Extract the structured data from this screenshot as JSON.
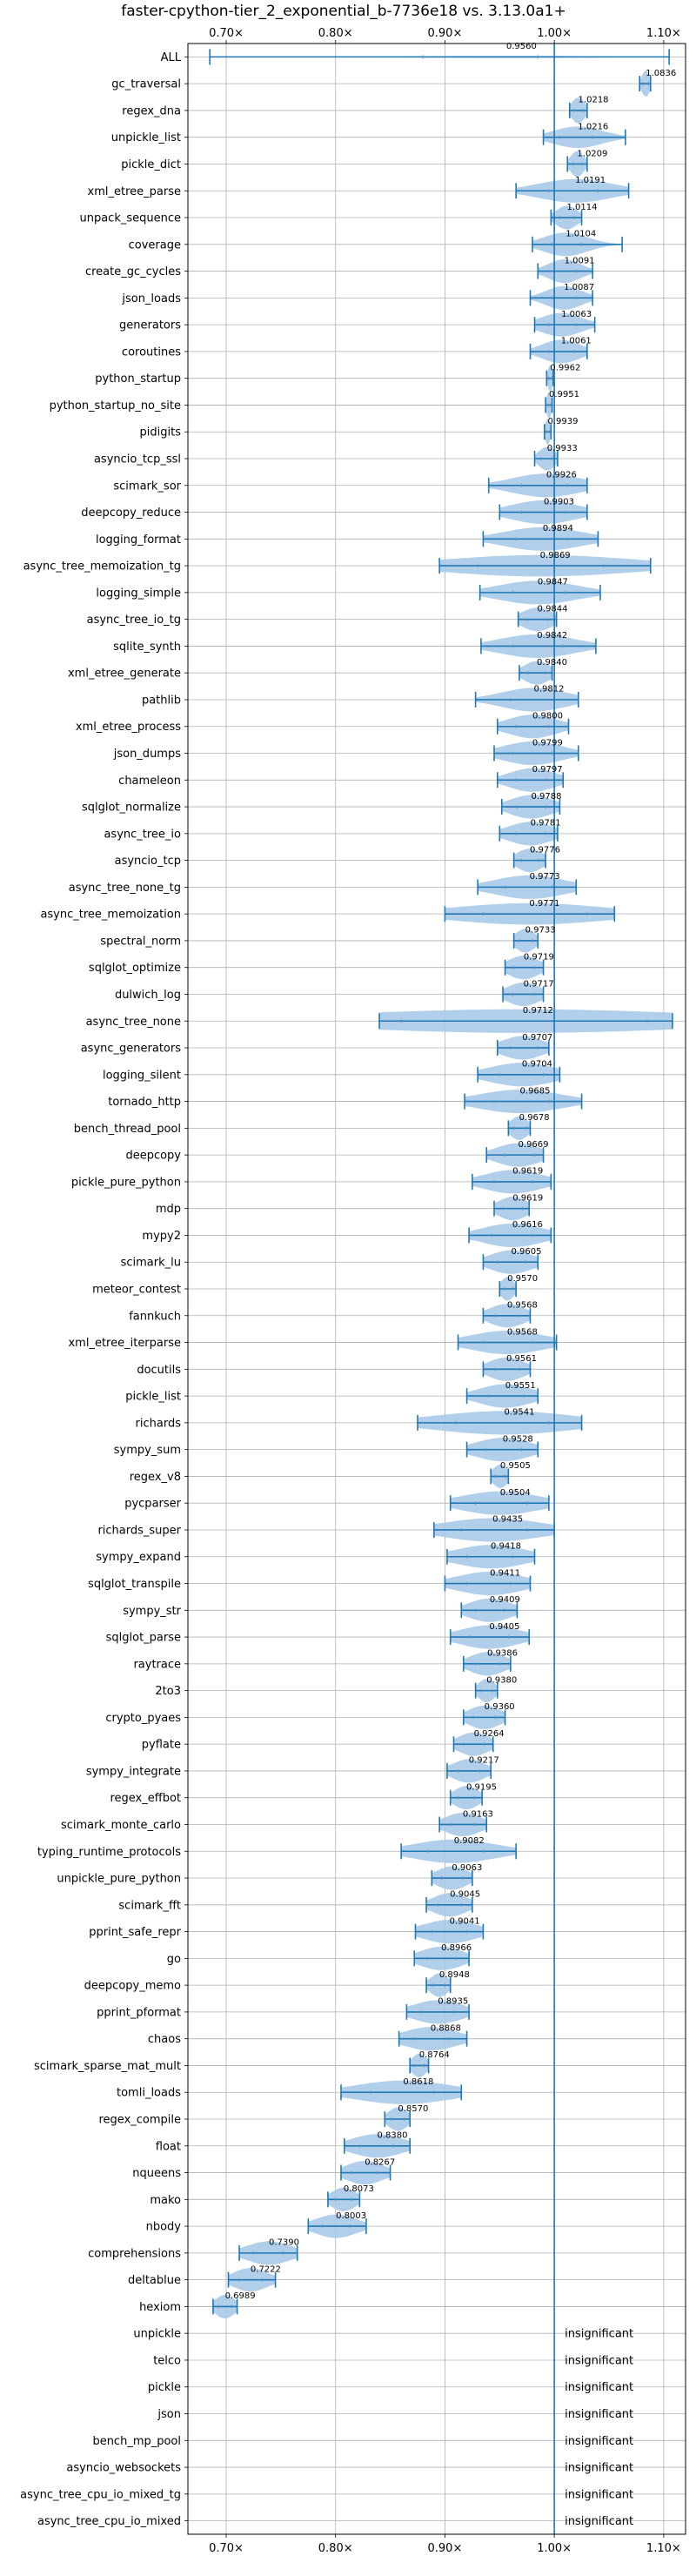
{
  "chart_data": {
    "type": "violin",
    "title": "faster-cpython-tier_2_exponential_b-7736e18 vs. 3.13.0a1+",
    "xlabel": "",
    "ylabel": "",
    "xlim": [
      0.665,
      1.12
    ],
    "x_ticks": [
      0.7,
      0.8,
      0.9,
      1.0,
      1.1
    ],
    "x_tick_labels": [
      "0.70×",
      "0.80×",
      "0.90×",
      "1.00×",
      "1.10×"
    ],
    "reference_line": 1.0,
    "grid": true,
    "colors": {
      "violin": "#a9c9e8",
      "line": "#1f77b4",
      "grid": "#b0b0b0"
    },
    "insignificant_text": "insignificant",
    "benchmarks": [
      {
        "name": "ALL",
        "value": 0.956,
        "label": "0.9560",
        "min": 0.685,
        "max": 1.105,
        "q1": 0.88,
        "q3": 0.985,
        "extent": 0.05
      },
      {
        "name": "gc_traversal",
        "value": 1.0836,
        "label": "1.0836",
        "min": 1.078,
        "max": 1.088,
        "q1": 1.081,
        "q3": 1.086,
        "extent": 0.6
      },
      {
        "name": "regex_dna",
        "value": 1.0218,
        "label": "1.0218",
        "min": 1.014,
        "max": 1.03,
        "q1": 1.018,
        "q3": 1.026,
        "extent": 0.6
      },
      {
        "name": "unpickle_list",
        "value": 1.0216,
        "label": "1.0216",
        "min": 0.99,
        "max": 1.065,
        "q1": 1.005,
        "q3": 1.035,
        "extent": 0.5
      },
      {
        "name": "pickle_dict",
        "value": 1.0209,
        "label": "1.0209",
        "min": 1.012,
        "max": 1.03,
        "q1": 1.017,
        "q3": 1.025,
        "extent": 0.6
      },
      {
        "name": "xml_etree_parse",
        "value": 1.0191,
        "label": "1.0191",
        "min": 0.965,
        "max": 1.068,
        "q1": 0.995,
        "q3": 1.04,
        "extent": 0.55
      },
      {
        "name": "unpack_sequence",
        "value": 1.0114,
        "label": "1.0114",
        "min": 0.997,
        "max": 1.025,
        "q1": 1.005,
        "q3": 1.018,
        "extent": 0.55
      },
      {
        "name": "coverage",
        "value": 1.0104,
        "label": "1.0104",
        "min": 0.98,
        "max": 1.062,
        "q1": 0.998,
        "q3": 1.025,
        "extent": 0.55
      },
      {
        "name": "create_gc_cycles",
        "value": 1.0091,
        "label": "1.0091",
        "min": 0.985,
        "max": 1.035,
        "q1": 1.0,
        "q3": 1.02,
        "extent": 0.55
      },
      {
        "name": "json_loads",
        "value": 1.0087,
        "label": "1.0087",
        "min": 0.978,
        "max": 1.035,
        "q1": 0.998,
        "q3": 1.02,
        "extent": 0.55
      },
      {
        "name": "generators",
        "value": 1.0063,
        "label": "1.0063",
        "min": 0.982,
        "max": 1.037,
        "q1": 0.995,
        "q3": 1.02,
        "extent": 0.55
      },
      {
        "name": "coroutines",
        "value": 1.0061,
        "label": "1.0061",
        "min": 0.978,
        "max": 1.03,
        "q1": 0.995,
        "q3": 1.018,
        "extent": 0.55
      },
      {
        "name": "python_startup",
        "value": 0.9962,
        "label": "0.9962",
        "min": 0.993,
        "max": 0.999,
        "q1": 0.995,
        "q3": 0.998,
        "extent": 0.6
      },
      {
        "name": "python_startup_no_site",
        "value": 0.9951,
        "label": "0.9951",
        "min": 0.992,
        "max": 0.998,
        "q1": 0.994,
        "q3": 0.997,
        "extent": 0.6
      },
      {
        "name": "pidigits",
        "value": 0.9939,
        "label": "0.9939",
        "min": 0.991,
        "max": 0.997,
        "q1": 0.993,
        "q3": 0.996,
        "extent": 0.6
      },
      {
        "name": "asyncio_tcp_ssl",
        "value": 0.9933,
        "label": "0.9933",
        "min": 0.982,
        "max": 1.003,
        "q1": 0.988,
        "q3": 0.998,
        "extent": 0.55
      },
      {
        "name": "scimark_sor",
        "value": 0.9926,
        "label": "0.9926",
        "min": 0.94,
        "max": 1.03,
        "q1": 0.97,
        "q3": 1.012,
        "extent": 0.55
      },
      {
        "name": "deepcopy_reduce",
        "value": 0.9903,
        "label": "0.9903",
        "min": 0.95,
        "max": 1.03,
        "q1": 0.97,
        "q3": 1.01,
        "extent": 0.55
      },
      {
        "name": "logging_format",
        "value": 0.9894,
        "label": "0.9894",
        "min": 0.935,
        "max": 1.04,
        "q1": 0.965,
        "q3": 1.012,
        "extent": 0.55
      },
      {
        "name": "async_tree_memoization_tg",
        "value": 0.9869,
        "label": "0.9869",
        "min": 0.895,
        "max": 1.088,
        "q1": 0.93,
        "q3": 1.045,
        "extent": 0.5
      },
      {
        "name": "logging_simple",
        "value": 0.9847,
        "label": "0.9847",
        "min": 0.932,
        "max": 1.042,
        "q1": 0.962,
        "q3": 1.01,
        "extent": 0.55
      },
      {
        "name": "async_tree_io_tg",
        "value": 0.9844,
        "label": "0.9844",
        "min": 0.967,
        "max": 1.002,
        "q1": 0.975,
        "q3": 0.994,
        "extent": 0.55
      },
      {
        "name": "sqlite_synth",
        "value": 0.9842,
        "label": "0.9842",
        "min": 0.933,
        "max": 1.038,
        "q1": 0.962,
        "q3": 1.008,
        "extent": 0.55
      },
      {
        "name": "xml_etree_generate",
        "value": 0.984,
        "label": "0.9840",
        "min": 0.968,
        "max": 0.998,
        "q1": 0.976,
        "q3": 0.992,
        "extent": 0.55
      },
      {
        "name": "pathlib",
        "value": 0.9812,
        "label": "0.9812",
        "min": 0.928,
        "max": 1.022,
        "q1": 0.96,
        "q3": 1.0,
        "extent": 0.55
      },
      {
        "name": "xml_etree_process",
        "value": 0.98,
        "label": "0.9800",
        "min": 0.948,
        "max": 1.013,
        "q1": 0.965,
        "q3": 0.995,
        "extent": 0.55
      },
      {
        "name": "json_dumps",
        "value": 0.9799,
        "label": "0.9799",
        "min": 0.945,
        "max": 1.022,
        "q1": 0.962,
        "q3": 0.998,
        "extent": 0.55
      },
      {
        "name": "chameleon",
        "value": 0.9797,
        "label": "0.9797",
        "min": 0.948,
        "max": 1.008,
        "q1": 0.965,
        "q3": 0.993,
        "extent": 0.55
      },
      {
        "name": "sqlglot_normalize",
        "value": 0.9788,
        "label": "0.9788",
        "min": 0.952,
        "max": 1.005,
        "q1": 0.966,
        "q3": 0.992,
        "extent": 0.55
      },
      {
        "name": "async_tree_io",
        "value": 0.9781,
        "label": "0.9781",
        "min": 0.95,
        "max": 1.003,
        "q1": 0.965,
        "q3": 0.992,
        "extent": 0.55
      },
      {
        "name": "asyncio_tcp",
        "value": 0.9776,
        "label": "0.9776",
        "min": 0.963,
        "max": 0.992,
        "q1": 0.97,
        "q3": 0.986,
        "extent": 0.55
      },
      {
        "name": "async_tree_none_tg",
        "value": 0.9773,
        "label": "0.9773",
        "min": 0.93,
        "max": 1.02,
        "q1": 0.955,
        "q3": 0.998,
        "extent": 0.55
      },
      {
        "name": "async_tree_memoization",
        "value": 0.9771,
        "label": "0.9771",
        "min": 0.9,
        "max": 1.055,
        "q1": 0.935,
        "q3": 1.03,
        "extent": 0.5
      },
      {
        "name": "spectral_norm",
        "value": 0.9733,
        "label": "0.9733",
        "min": 0.963,
        "max": 0.985,
        "q1": 0.968,
        "q3": 0.98,
        "extent": 0.55
      },
      {
        "name": "sqlglot_optimize",
        "value": 0.9719,
        "label": "0.9719",
        "min": 0.955,
        "max": 0.99,
        "q1": 0.963,
        "q3": 0.982,
        "extent": 0.55
      },
      {
        "name": "dulwich_log",
        "value": 0.9717,
        "label": "0.9717",
        "min": 0.953,
        "max": 0.99,
        "q1": 0.962,
        "q3": 0.982,
        "extent": 0.55
      },
      {
        "name": "async_tree_none",
        "value": 0.9712,
        "label": "0.9712",
        "min": 0.84,
        "max": 1.108,
        "q1": 0.86,
        "q3": 1.085,
        "extent": 0.55
      },
      {
        "name": "async_generators",
        "value": 0.9707,
        "label": "0.9707",
        "min": 0.948,
        "max": 0.995,
        "q1": 0.96,
        "q3": 0.985,
        "extent": 0.55
      },
      {
        "name": "logging_silent",
        "value": 0.9704,
        "label": "0.9704",
        "min": 0.93,
        "max": 1.005,
        "q1": 0.95,
        "q3": 0.99,
        "extent": 0.55
      },
      {
        "name": "tornado_http",
        "value": 0.9685,
        "label": "0.9685",
        "min": 0.918,
        "max": 1.025,
        "q1": 0.945,
        "q3": 0.995,
        "extent": 0.55
      },
      {
        "name": "bench_thread_pool",
        "value": 0.9678,
        "label": "0.9678",
        "min": 0.958,
        "max": 0.978,
        "q1": 0.963,
        "q3": 0.974,
        "extent": 0.55
      },
      {
        "name": "deepcopy",
        "value": 0.9669,
        "label": "0.9669",
        "min": 0.938,
        "max": 0.99,
        "q1": 0.955,
        "q3": 0.982,
        "extent": 0.55
      },
      {
        "name": "pickle_pure_python",
        "value": 0.9619,
        "label": "0.9619",
        "min": 0.925,
        "max": 0.997,
        "q1": 0.945,
        "q3": 0.98,
        "extent": 0.55
      },
      {
        "name": "mdp",
        "value": 0.9619,
        "label": "0.9619",
        "min": 0.945,
        "max": 0.977,
        "q1": 0.953,
        "q3": 0.971,
        "extent": 0.55
      },
      {
        "name": "mypy2",
        "value": 0.9616,
        "label": "0.9616",
        "min": 0.922,
        "max": 0.997,
        "q1": 0.943,
        "q3": 0.98,
        "extent": 0.55
      },
      {
        "name": "scimark_lu",
        "value": 0.9605,
        "label": "0.9605",
        "min": 0.935,
        "max": 0.985,
        "q1": 0.948,
        "q3": 0.974,
        "extent": 0.55
      },
      {
        "name": "meteor_contest",
        "value": 0.957,
        "label": "0.9570",
        "min": 0.95,
        "max": 0.965,
        "q1": 0.954,
        "q3": 0.962,
        "extent": 0.55
      },
      {
        "name": "fannkuch",
        "value": 0.9568,
        "label": "0.9568",
        "min": 0.935,
        "max": 0.978,
        "q1": 0.946,
        "q3": 0.968,
        "extent": 0.55
      },
      {
        "name": "xml_etree_iterparse",
        "value": 0.9568,
        "label": "0.9568",
        "min": 0.912,
        "max": 1.002,
        "q1": 0.935,
        "q3": 0.98,
        "extent": 0.55
      },
      {
        "name": "docutils",
        "value": 0.9561,
        "label": "0.9561",
        "min": 0.935,
        "max": 0.978,
        "q1": 0.946,
        "q3": 0.968,
        "extent": 0.55
      },
      {
        "name": "pickle_list",
        "value": 0.9551,
        "label": "0.9551",
        "min": 0.92,
        "max": 0.985,
        "q1": 0.94,
        "q3": 0.972,
        "extent": 0.55
      },
      {
        "name": "richards",
        "value": 0.9541,
        "label": "0.9541",
        "min": 0.875,
        "max": 1.025,
        "q1": 0.91,
        "q3": 0.995,
        "extent": 0.55
      },
      {
        "name": "sympy_sum",
        "value": 0.9528,
        "label": "0.9528",
        "min": 0.92,
        "max": 0.985,
        "q1": 0.937,
        "q3": 0.97,
        "extent": 0.55
      },
      {
        "name": "regex_v8",
        "value": 0.9505,
        "label": "0.9505",
        "min": 0.942,
        "max": 0.958,
        "q1": 0.946,
        "q3": 0.955,
        "extent": 0.55
      },
      {
        "name": "pycparser",
        "value": 0.9504,
        "label": "0.9504",
        "min": 0.905,
        "max": 0.995,
        "q1": 0.928,
        "q3": 0.975,
        "extent": 0.55
      },
      {
        "name": "richards_super",
        "value": 0.9435,
        "label": "0.9435",
        "min": 0.89,
        "max": 1.0,
        "q1": 0.915,
        "q3": 0.975,
        "extent": 0.55
      },
      {
        "name": "sympy_expand",
        "value": 0.9418,
        "label": "0.9418",
        "min": 0.902,
        "max": 0.982,
        "q1": 0.92,
        "q3": 0.962,
        "extent": 0.55
      },
      {
        "name": "sqlglot_transpile",
        "value": 0.9411,
        "label": "0.9411",
        "min": 0.9,
        "max": 0.978,
        "q1": 0.92,
        "q3": 0.96,
        "extent": 0.55
      },
      {
        "name": "sympy_str",
        "value": 0.9409,
        "label": "0.9409",
        "min": 0.915,
        "max": 0.966,
        "q1": 0.928,
        "q3": 0.954,
        "extent": 0.55
      },
      {
        "name": "sqlglot_parse",
        "value": 0.9405,
        "label": "0.9405",
        "min": 0.905,
        "max": 0.977,
        "q1": 0.922,
        "q3": 0.958,
        "extent": 0.55
      },
      {
        "name": "raytrace",
        "value": 0.9386,
        "label": "0.9386",
        "min": 0.917,
        "max": 0.96,
        "q1": 0.928,
        "q3": 0.95,
        "extent": 0.55
      },
      {
        "name": "2to3",
        "value": 0.938,
        "label": "0.9380",
        "min": 0.928,
        "max": 0.948,
        "q1": 0.933,
        "q3": 0.943,
        "extent": 0.55
      },
      {
        "name": "crypto_pyaes",
        "value": 0.936,
        "label": "0.9360",
        "min": 0.917,
        "max": 0.955,
        "q1": 0.926,
        "q3": 0.946,
        "extent": 0.55
      },
      {
        "name": "pyflate",
        "value": 0.9264,
        "label": "0.9264",
        "min": 0.908,
        "max": 0.944,
        "q1": 0.917,
        "q3": 0.936,
        "extent": 0.55
      },
      {
        "name": "sympy_integrate",
        "value": 0.9217,
        "label": "0.9217",
        "min": 0.902,
        "max": 0.942,
        "q1": 0.912,
        "q3": 0.932,
        "extent": 0.55
      },
      {
        "name": "regex_effbot",
        "value": 0.9195,
        "label": "0.9195",
        "min": 0.905,
        "max": 0.934,
        "q1": 0.912,
        "q3": 0.927,
        "extent": 0.55
      },
      {
        "name": "scimark_monte_carlo",
        "value": 0.9163,
        "label": "0.9163",
        "min": 0.895,
        "max": 0.938,
        "q1": 0.905,
        "q3": 0.927,
        "extent": 0.55
      },
      {
        "name": "typing_runtime_protocols",
        "value": 0.9082,
        "label": "0.9082",
        "min": 0.86,
        "max": 0.965,
        "q1": 0.885,
        "q3": 0.935,
        "extent": 0.55
      },
      {
        "name": "unpickle_pure_python",
        "value": 0.9063,
        "label": "0.9063",
        "min": 0.888,
        "max": 0.925,
        "q1": 0.897,
        "q3": 0.916,
        "extent": 0.55
      },
      {
        "name": "scimark_fft",
        "value": 0.9045,
        "label": "0.9045",
        "min": 0.883,
        "max": 0.925,
        "q1": 0.894,
        "q3": 0.915,
        "extent": 0.55
      },
      {
        "name": "pprint_safe_repr",
        "value": 0.9041,
        "label": "0.9041",
        "min": 0.873,
        "max": 0.935,
        "q1": 0.888,
        "q3": 0.92,
        "extent": 0.55
      },
      {
        "name": "go",
        "value": 0.8966,
        "label": "0.8966",
        "min": 0.872,
        "max": 0.922,
        "q1": 0.884,
        "q3": 0.91,
        "extent": 0.55
      },
      {
        "name": "deepcopy_memo",
        "value": 0.8948,
        "label": "0.8948",
        "min": 0.883,
        "max": 0.905,
        "q1": 0.889,
        "q3": 0.9,
        "extent": 0.55
      },
      {
        "name": "pprint_pformat",
        "value": 0.8935,
        "label": "0.8935",
        "min": 0.865,
        "max": 0.922,
        "q1": 0.878,
        "q3": 0.908,
        "extent": 0.55
      },
      {
        "name": "chaos",
        "value": 0.8868,
        "label": "0.8868",
        "min": 0.858,
        "max": 0.92,
        "q1": 0.871,
        "q3": 0.903,
        "extent": 0.55
      },
      {
        "name": "scimark_sparse_mat_mult",
        "value": 0.8764,
        "label": "0.8764",
        "min": 0.868,
        "max": 0.885,
        "q1": 0.872,
        "q3": 0.881,
        "extent": 0.55
      },
      {
        "name": "tomli_loads",
        "value": 0.8618,
        "label": "0.8618",
        "min": 0.805,
        "max": 0.915,
        "q1": 0.832,
        "q3": 0.89,
        "extent": 0.55
      },
      {
        "name": "regex_compile",
        "value": 0.857,
        "label": "0.8570",
        "min": 0.845,
        "max": 0.868,
        "q1": 0.851,
        "q3": 0.863,
        "extent": 0.55
      },
      {
        "name": "float",
        "value": 0.838,
        "label": "0.8380",
        "min": 0.808,
        "max": 0.868,
        "q1": 0.822,
        "q3": 0.853,
        "extent": 0.55
      },
      {
        "name": "nqueens",
        "value": 0.8267,
        "label": "0.8267",
        "min": 0.805,
        "max": 0.85,
        "q1": 0.815,
        "q3": 0.838,
        "extent": 0.55
      },
      {
        "name": "mako",
        "value": 0.8073,
        "label": "0.8073",
        "min": 0.793,
        "max": 0.822,
        "q1": 0.8,
        "q3": 0.815,
        "extent": 0.55
      },
      {
        "name": "nbody",
        "value": 0.8003,
        "label": "0.8003",
        "min": 0.775,
        "max": 0.828,
        "q1": 0.788,
        "q3": 0.813,
        "extent": 0.55
      },
      {
        "name": "comprehensions",
        "value": 0.739,
        "label": "0.7390",
        "min": 0.712,
        "max": 0.765,
        "q1": 0.725,
        "q3": 0.752,
        "extent": 0.55
      },
      {
        "name": "deltablue",
        "value": 0.7222,
        "label": "0.7222",
        "min": 0.702,
        "max": 0.745,
        "q1": 0.712,
        "q3": 0.733,
        "extent": 0.55
      },
      {
        "name": "hexiom",
        "value": 0.6989,
        "label": "0.6989",
        "min": 0.688,
        "max": 0.71,
        "q1": 0.693,
        "q3": 0.705,
        "extent": 0.55
      },
      {
        "name": "unpickle",
        "insignificant": true
      },
      {
        "name": "telco",
        "insignificant": true
      },
      {
        "name": "pickle",
        "insignificant": true
      },
      {
        "name": "json",
        "insignificant": true
      },
      {
        "name": "bench_mp_pool",
        "insignificant": true
      },
      {
        "name": "asyncio_websockets",
        "insignificant": true
      },
      {
        "name": "async_tree_cpu_io_mixed_tg",
        "insignificant": true
      },
      {
        "name": "async_tree_cpu_io_mixed",
        "insignificant": true
      }
    ]
  }
}
